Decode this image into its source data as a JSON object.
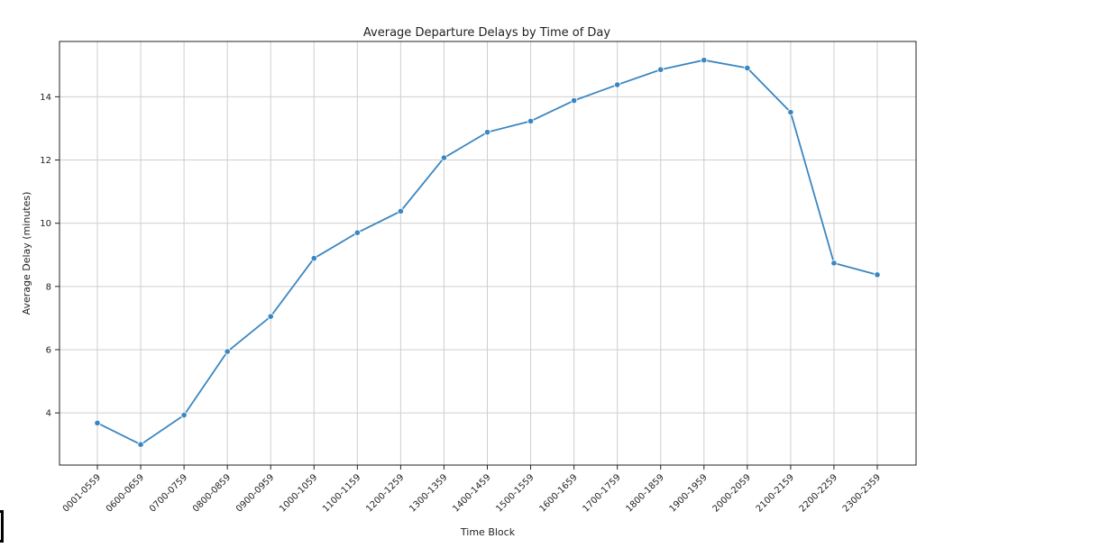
{
  "chart_data": {
    "type": "line",
    "title": "Average Departure Delays by Time of Day",
    "xlabel": "Time Block",
    "ylabel": "Average Delay (minutes)",
    "categories": [
      "0001-0559",
      "0600-0659",
      "0700-0759",
      "0800-0859",
      "0900-0959",
      "1000-1059",
      "1100-1159",
      "1200-1259",
      "1300-1359",
      "1400-1459",
      "1500-1559",
      "1600-1659",
      "1700-1759",
      "1800-1859",
      "1900-1959",
      "2000-2059",
      "2100-2159",
      "2200-2259",
      "2300-2359"
    ],
    "series": [
      {
        "values": [
          3.68,
          3.0,
          3.93,
          5.94,
          7.05,
          8.89,
          9.7,
          10.38,
          12.07,
          12.88,
          13.23,
          13.88,
          14.38,
          14.86,
          15.16,
          14.91,
          13.51,
          8.74,
          8.37
        ]
      }
    ],
    "ylim": [
      2.35,
      15.75
    ],
    "yticks": [
      4,
      6,
      8,
      10,
      12,
      14
    ],
    "grid": true,
    "line_color": "#3a87c0",
    "marker": "circle"
  }
}
